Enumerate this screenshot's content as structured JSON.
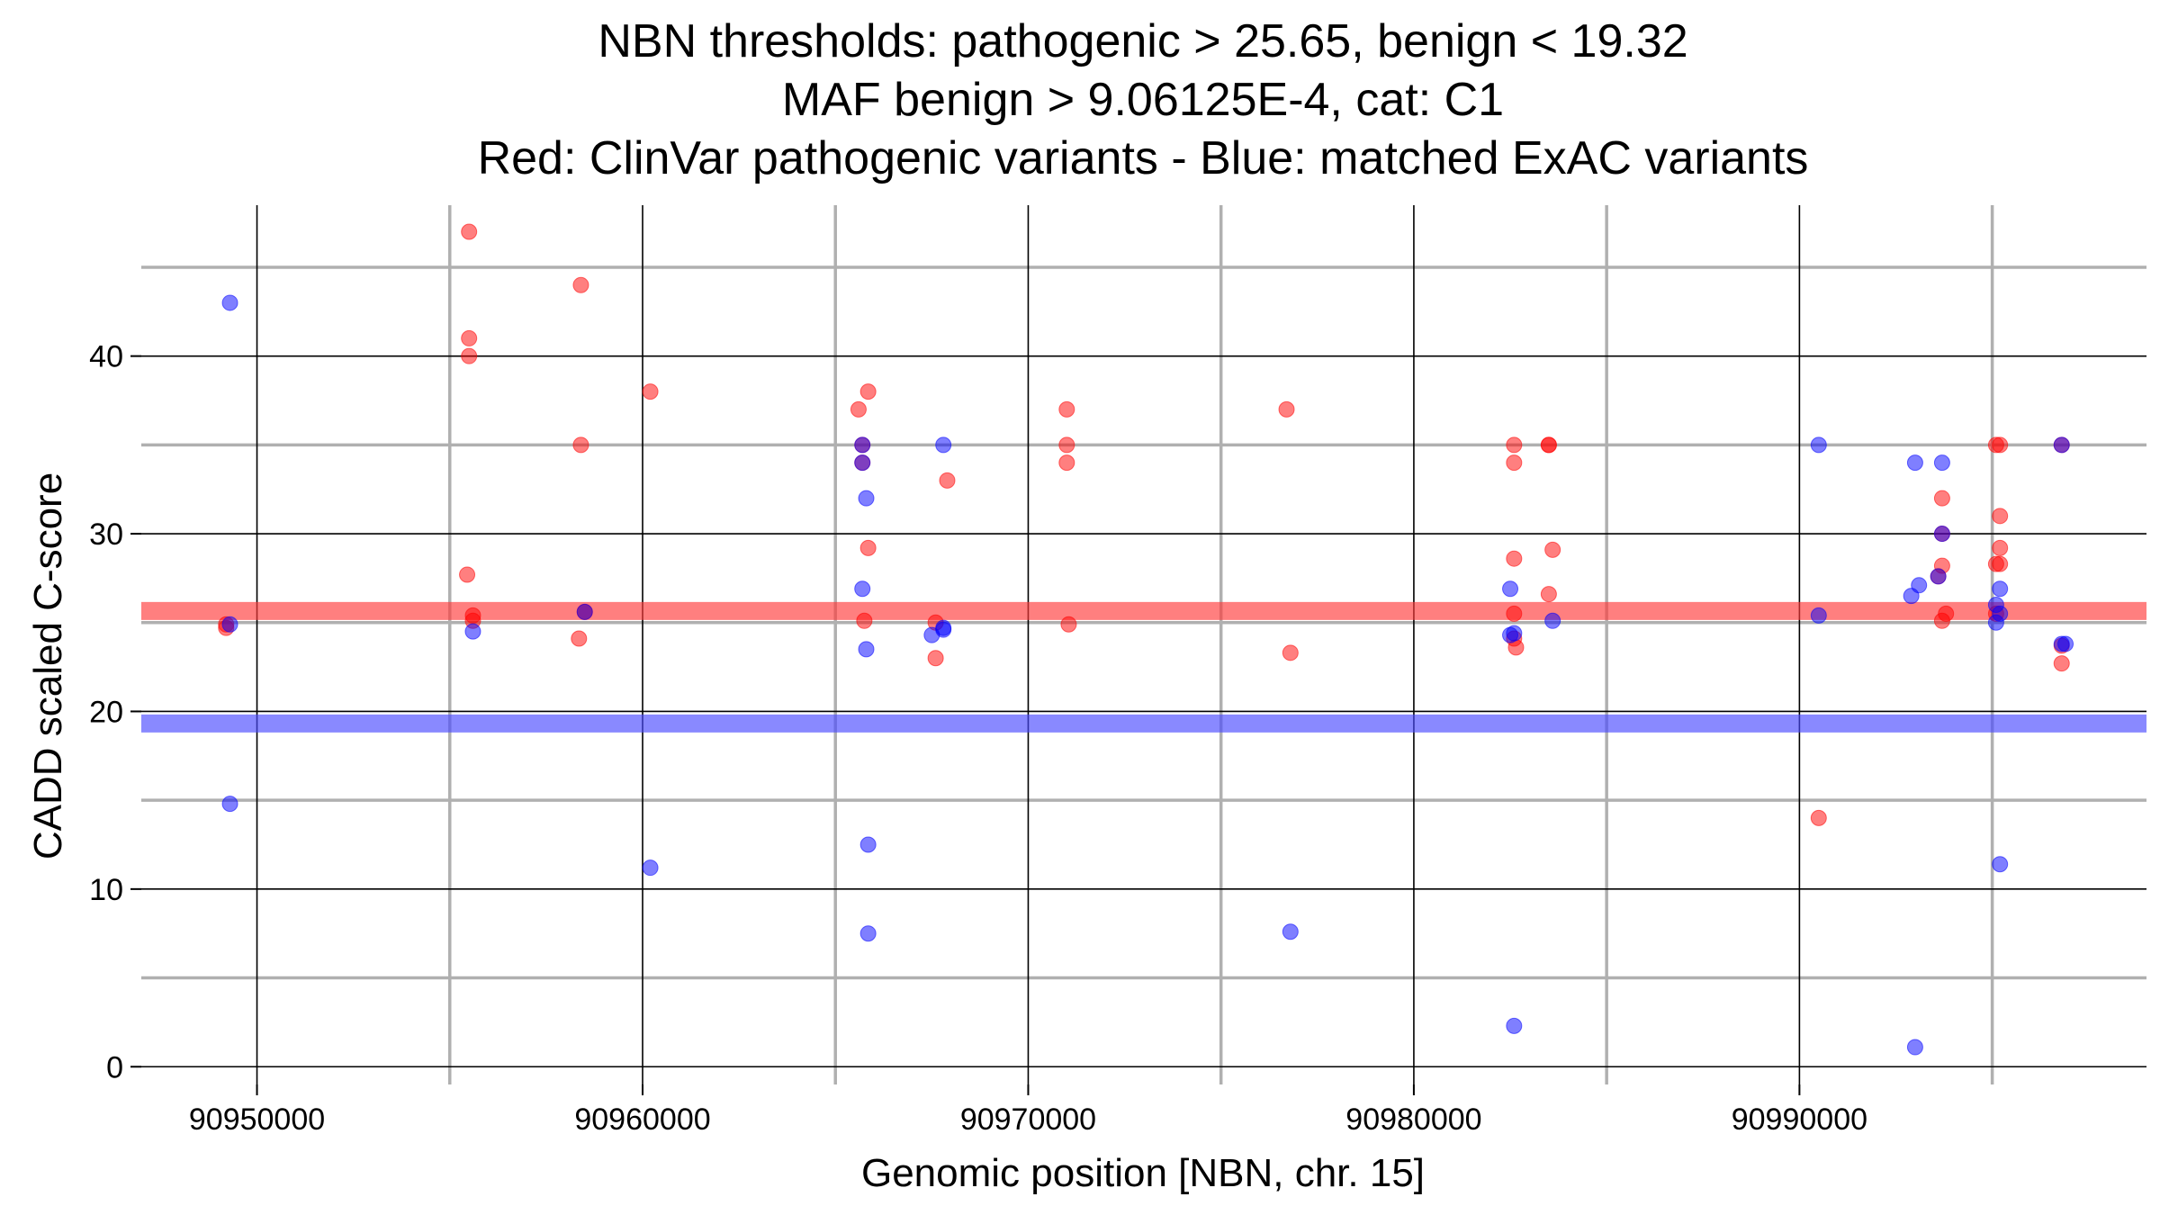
{
  "chart_data": {
    "type": "scatter",
    "title_lines": [
      "NBN thresholds: pathogenic > 25.65, benign < 19.32",
      "MAF benign > 9.06125E-4, cat: C1",
      "Red: ClinVar pathogenic variants - Blue: matched ExAC variants"
    ],
    "xlabel": "Genomic position [NBN, chr. 15]",
    "ylabel": "CADD scaled C-score",
    "xlim": [
      90947000,
      90999000
    ],
    "ylim": [
      -1,
      49
    ],
    "x_major_ticks": [
      90950000,
      90960000,
      90970000,
      90980000,
      90990000
    ],
    "x_tick_labels": [
      "90950000",
      "90960000",
      "90970000",
      "90980000",
      "90990000"
    ],
    "x_minor_ticks": [
      90955000,
      90965000,
      90975000,
      90985000,
      90995000
    ],
    "y_major_ticks": [
      0,
      10,
      20,
      30,
      40
    ],
    "y_tick_labels": [
      "0",
      "10",
      "20",
      "30",
      "40"
    ],
    "y_minor_ticks": [
      5,
      15,
      25,
      35,
      45
    ],
    "thresholds": [
      {
        "name": "pathogenic",
        "value": 25.65,
        "color": "#ff3a3a"
      },
      {
        "name": "benign",
        "value": 19.32,
        "color": "#4a4aff"
      }
    ],
    "colors": {
      "pathogenic": "#ff0000",
      "benign": "#0000ff",
      "major_grid": "#000000",
      "minor_grid": "#b0b0b0"
    },
    "series": [
      {
        "name": "ClinVar pathogenic",
        "color": "#ff0000",
        "points": [
          [
            90949200,
            24.7
          ],
          [
            90949200,
            24.9
          ],
          [
            90955500,
            47
          ],
          [
            90955500,
            41
          ],
          [
            90955500,
            40
          ],
          [
            90955450,
            27.7
          ],
          [
            90955600,
            25.4
          ],
          [
            90955600,
            25.1
          ],
          [
            90958400,
            44
          ],
          [
            90958400,
            35
          ],
          [
            90958350,
            24.1
          ],
          [
            90958500,
            25.6
          ],
          [
            90960200,
            38
          ],
          [
            90965600,
            37
          ],
          [
            90965700,
            35
          ],
          [
            90965700,
            34
          ],
          [
            90965850,
            38
          ],
          [
            90965850,
            29.2
          ],
          [
            90965750,
            25.1
          ],
          [
            90967900,
            33
          ],
          [
            90967600,
            25
          ],
          [
            90967600,
            23
          ],
          [
            90971000,
            37
          ],
          [
            90971000,
            35
          ],
          [
            90971000,
            34
          ],
          [
            90971050,
            24.9
          ],
          [
            90976700,
            37
          ],
          [
            90976800,
            23.3
          ],
          [
            90982600,
            35
          ],
          [
            90982600,
            34
          ],
          [
            90982600,
            28.6
          ],
          [
            90982600,
            25.5
          ],
          [
            90982600,
            24.1
          ],
          [
            90982650,
            23.6
          ],
          [
            90983500,
            35
          ],
          [
            90983500,
            35
          ],
          [
            90983600,
            29.1
          ],
          [
            90983500,
            26.6
          ],
          [
            90990500,
            14
          ],
          [
            90993700,
            32
          ],
          [
            90993700,
            30
          ],
          [
            90993700,
            28.2
          ],
          [
            90993600,
            27.6
          ],
          [
            90993800,
            25.5
          ],
          [
            90993700,
            25.1
          ],
          [
            90995100,
            35
          ],
          [
            90995200,
            35
          ],
          [
            90995200,
            31
          ],
          [
            90995200,
            29.2
          ],
          [
            90995100,
            28.3
          ],
          [
            90995200,
            28.3
          ],
          [
            90995100,
            25.5
          ],
          [
            90996800,
            35
          ],
          [
            90996800,
            23.7
          ],
          [
            90996800,
            22.7
          ]
        ]
      },
      {
        "name": "matched ExAC",
        "color": "#0000ff",
        "points": [
          [
            90949300,
            43
          ],
          [
            90949300,
            24.9
          ],
          [
            90949300,
            14.8
          ],
          [
            90955600,
            24.5
          ],
          [
            90958500,
            25.6
          ],
          [
            90960200,
            11.2
          ],
          [
            90965700,
            35
          ],
          [
            90965700,
            34
          ],
          [
            90965800,
            32
          ],
          [
            90965700,
            26.9
          ],
          [
            90965800,
            23.5
          ],
          [
            90965850,
            12.5
          ],
          [
            90965850,
            7.5
          ],
          [
            90967800,
            35
          ],
          [
            90967500,
            24.3
          ],
          [
            90967800,
            24.7
          ],
          [
            90967800,
            24.6
          ],
          [
            90976800,
            7.6
          ],
          [
            90982500,
            26.9
          ],
          [
            90982500,
            24.3
          ],
          [
            90982600,
            24.4
          ],
          [
            90983600,
            25.1
          ],
          [
            90982600,
            2.3
          ],
          [
            90990500,
            35
          ],
          [
            90990500,
            25.4
          ],
          [
            90993000,
            34
          ],
          [
            90993700,
            34
          ],
          [
            90993700,
            30
          ],
          [
            90993100,
            27.1
          ],
          [
            90992900,
            26.5
          ],
          [
            90993600,
            27.6
          ],
          [
            90995100,
            26
          ],
          [
            90995200,
            26.9
          ],
          [
            90995200,
            25.5
          ],
          [
            90995100,
            25
          ],
          [
            90995200,
            11.4
          ],
          [
            90993000,
            1.1
          ],
          [
            90996800,
            35
          ],
          [
            90996900,
            23.8
          ],
          [
            90996800,
            23.8
          ]
        ]
      }
    ]
  }
}
